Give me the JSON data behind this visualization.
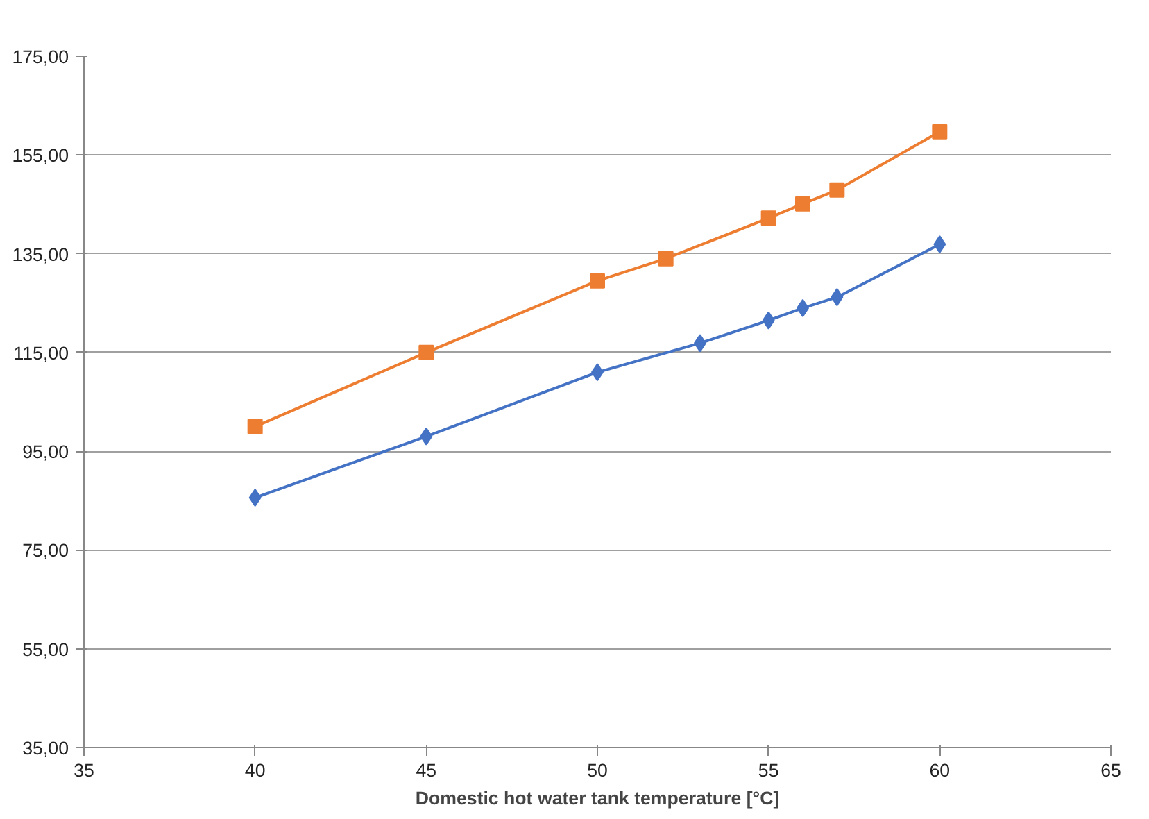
{
  "chart_data": {
    "type": "line",
    "xlabel": "Domestic hot water tank temperature [°C]",
    "xlim": [
      35,
      65
    ],
    "xticks": [
      35,
      40,
      45,
      50,
      55,
      60,
      65
    ],
    "ylim": [
      35,
      175
    ],
    "yticks": [
      {
        "value": 35,
        "label": "35,00"
      },
      {
        "value": 55,
        "label": "55,00"
      },
      {
        "value": 75,
        "label": "75,00"
      },
      {
        "value": 95,
        "label": "95,00"
      },
      {
        "value": 115,
        "label": "115,00"
      },
      {
        "value": 135,
        "label": "135,00"
      },
      {
        "value": 155,
        "label": "155,00"
      },
      {
        "value": 175,
        "label": "175,00"
      }
    ],
    "grid": "y",
    "line_style": "solid",
    "series": [
      {
        "color": "#ed7d31",
        "marker": "square",
        "x": [
          40,
          45,
          50,
          52,
          55,
          56,
          57,
          60
        ],
        "values": [
          100,
          115,
          129.5,
          134,
          142.2,
          145.1,
          147.9,
          159.7
        ]
      },
      {
        "color": "#4472c4",
        "marker": "diamond",
        "x": [
          40,
          45,
          50,
          53,
          55,
          56,
          57,
          60
        ],
        "values": [
          85.6,
          98,
          111,
          116.9,
          121.5,
          124,
          126.2,
          136.9
        ]
      }
    ]
  }
}
